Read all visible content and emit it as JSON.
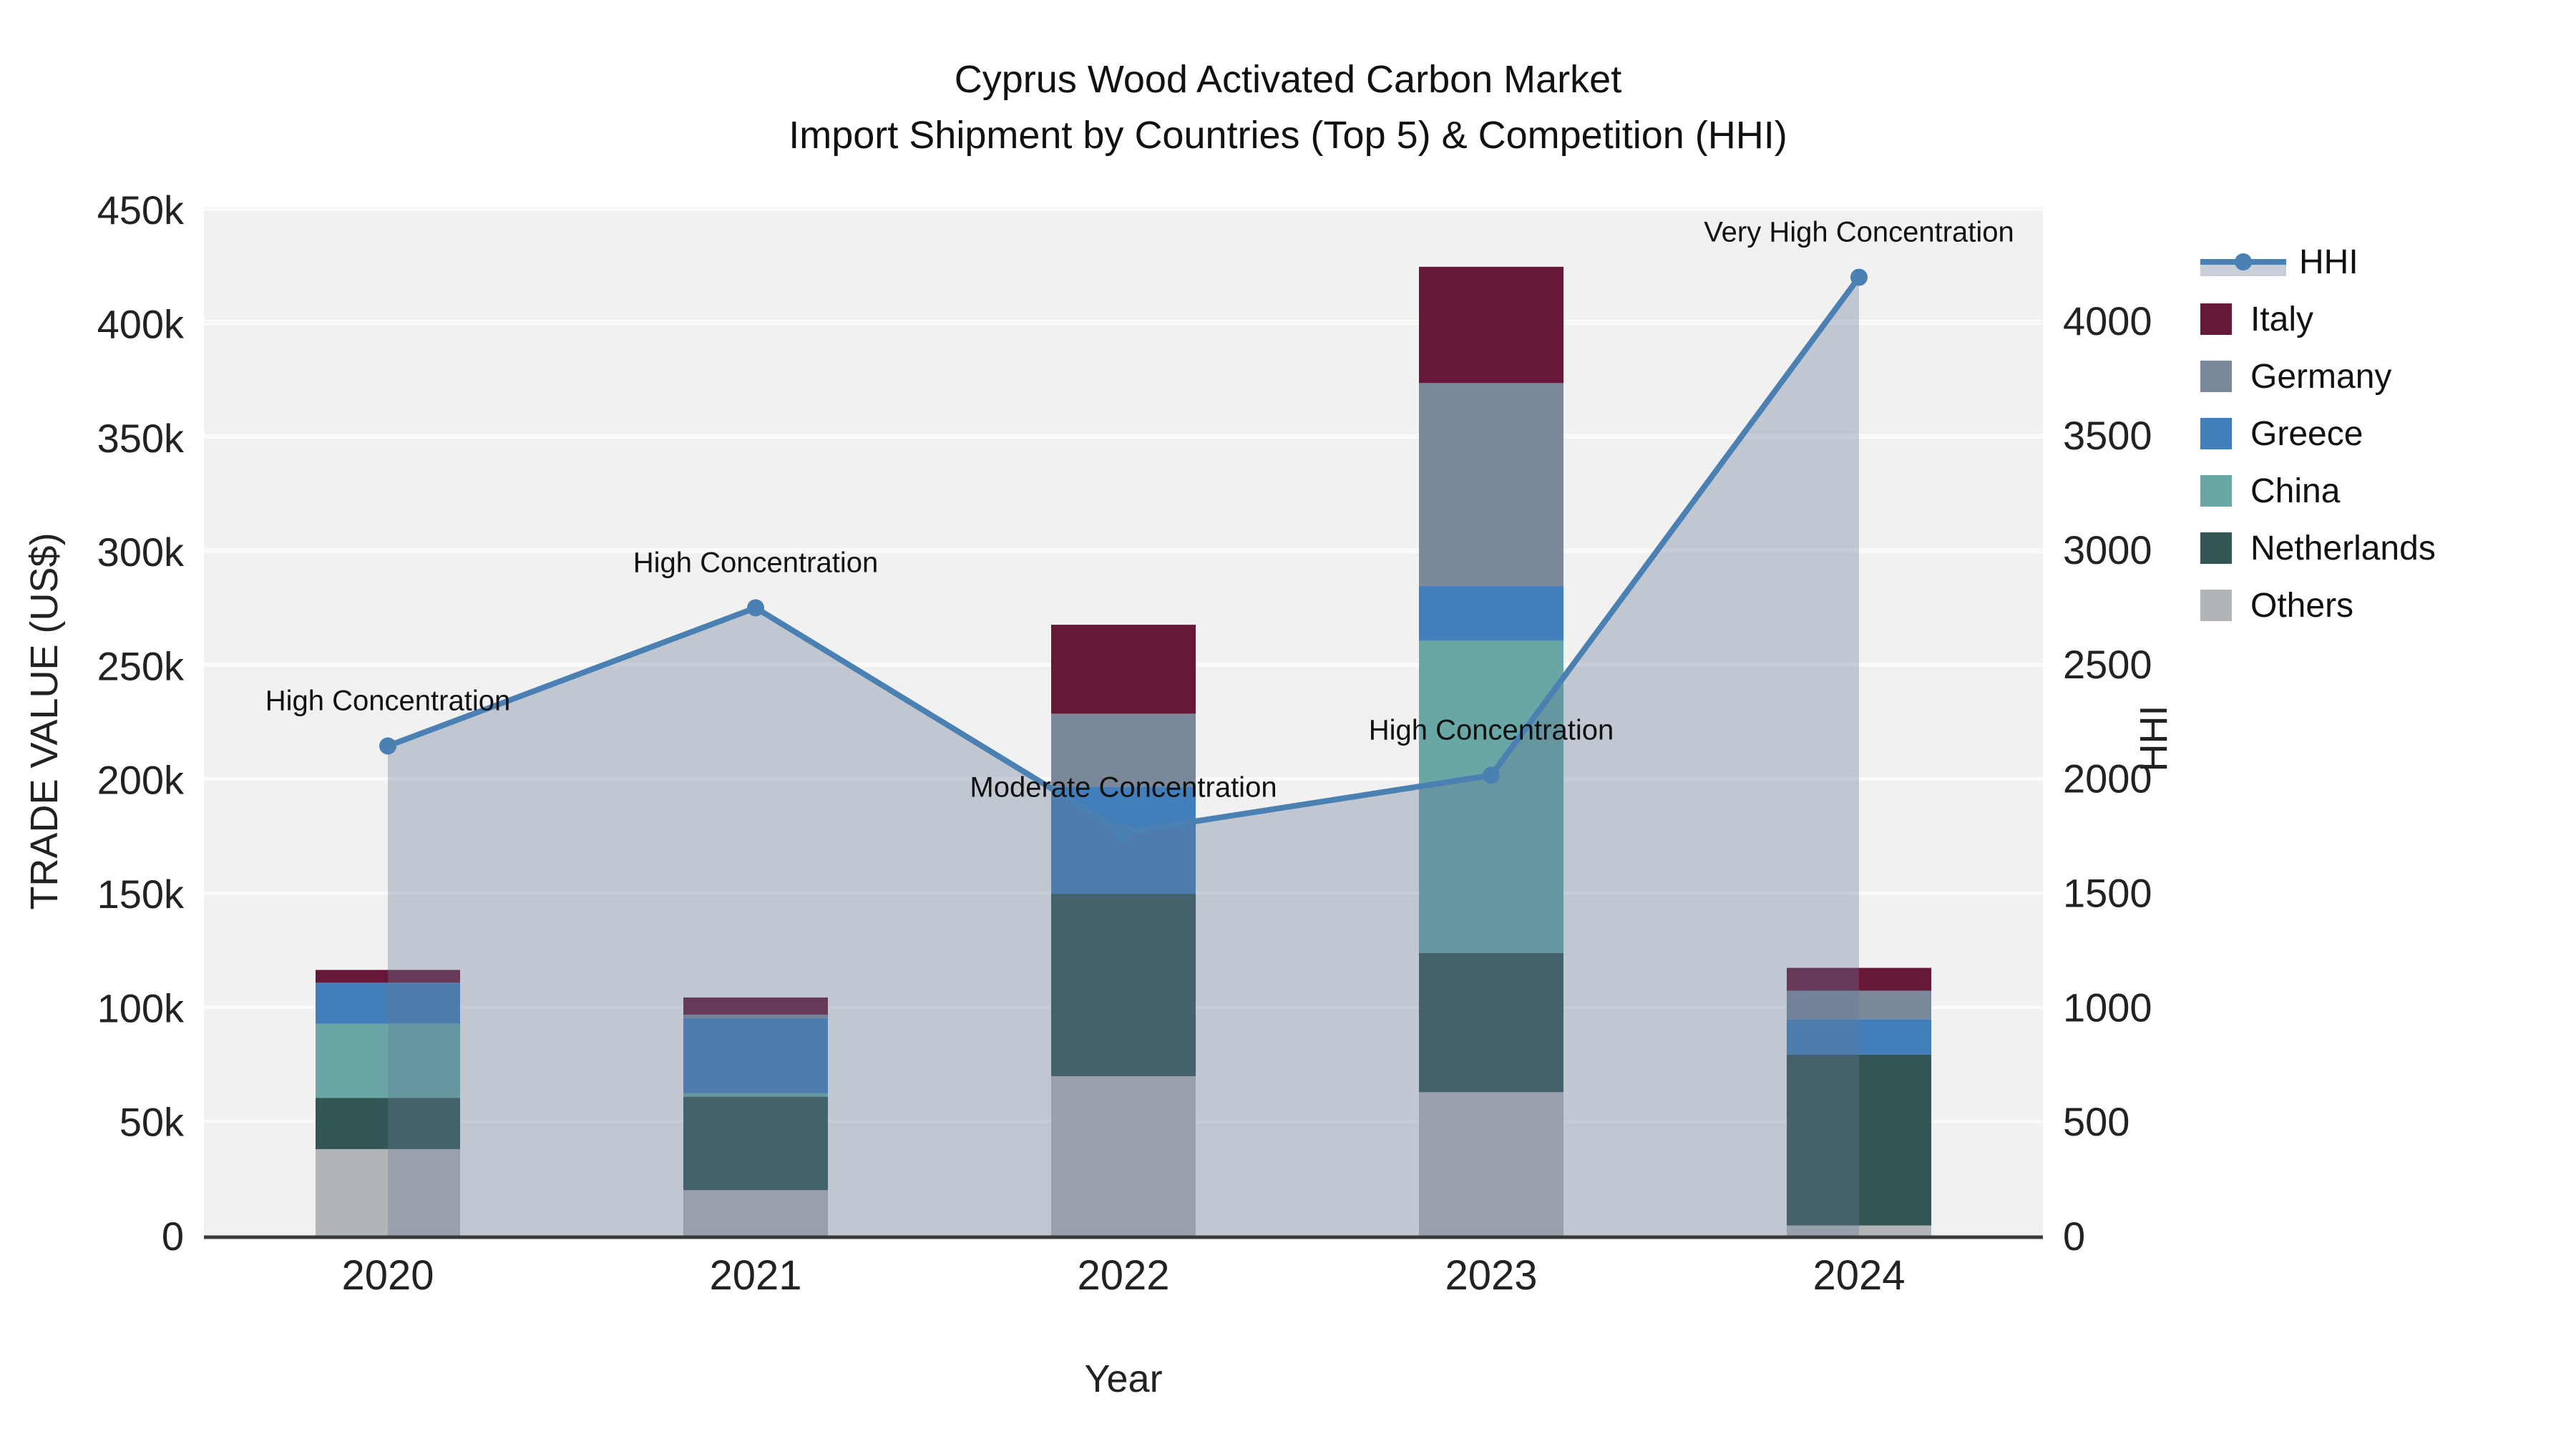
{
  "title": {
    "line1": "Cyprus Wood Activated Carbon Market",
    "line2": "Import Shipment by Countries (Top 5) & Competition (HHI)"
  },
  "chart_data": {
    "type": "bar+line",
    "subtype": "stacked-bars-with-secondary-axis-line",
    "categories": [
      "2020",
      "2021",
      "2022",
      "2023",
      "2024"
    ],
    "series": [
      {
        "name": "Italy",
        "color": "#671838",
        "values": [
          5600,
          7500,
          39000,
          51000,
          10000
        ]
      },
      {
        "name": "Germany",
        "color": "#7a889a",
        "values": [
          0,
          1500,
          32000,
          89000,
          12500
        ]
      },
      {
        "name": "Greece",
        "color": "#427eba",
        "values": [
          18000,
          33000,
          47000,
          24000,
          15500
        ]
      },
      {
        "name": "China",
        "color": "#68a7a5",
        "values": [
          32500,
          1500,
          0,
          137000,
          0
        ]
      },
      {
        "name": "Netherlands",
        "color": "#335655",
        "values": [
          22500,
          41000,
          80000,
          61000,
          75000
        ]
      },
      {
        "name": "Others",
        "color": "#b2b5b7",
        "values": [
          38000,
          20000,
          70000,
          63000,
          4500
        ]
      }
    ],
    "stack_bottom_to_top": [
      "Others",
      "Netherlands",
      "China",
      "Greece",
      "Germany",
      "Italy"
    ],
    "line_series": {
      "name": "HHI",
      "color": "#4a80b2",
      "area_fill": "rgba(100,120,150,0.35)",
      "values": [
        2141,
        2745,
        1763,
        2013,
        4190
      ]
    },
    "annotations": [
      {
        "year": "2020",
        "text": "High Concentration"
      },
      {
        "year": "2021",
        "text": "High Concentration"
      },
      {
        "year": "2022",
        "text": "Moderate Concentration"
      },
      {
        "year": "2023",
        "text": "High Concentration"
      },
      {
        "year": "2024",
        "text": "Very High Concentration"
      }
    ],
    "x_axis": {
      "title": "Year"
    },
    "left_axis": {
      "title": "TRADE VALUE (US$)",
      "tick_labels": [
        "0",
        "50k",
        "100k",
        "150k",
        "200k",
        "250k",
        "300k",
        "350k",
        "400k",
        "450k"
      ],
      "tick_values": [
        0,
        50000,
        100000,
        150000,
        200000,
        250000,
        300000,
        350000,
        400000,
        450000
      ],
      "range": [
        0,
        451000
      ],
      "grid": true
    },
    "right_axis": {
      "title": "HHI",
      "tick_labels": [
        "0",
        "500",
        "1000",
        "1500",
        "2000",
        "2500",
        "3000",
        "3500",
        "4000"
      ],
      "tick_values": [
        0,
        500,
        1000,
        1500,
        2000,
        2500,
        3000,
        3500,
        4000
      ],
      "range": [
        0,
        4495
      ],
      "grid": true
    },
    "legend_position": "right"
  },
  "colors": {
    "plot_bg": "#f1f1f2",
    "grid": "#fbfbfb",
    "axis_line": "#3b3b3b",
    "tick_text": "#222222",
    "annotation_text": "#111111",
    "legend_band": "#c9cfd8"
  }
}
